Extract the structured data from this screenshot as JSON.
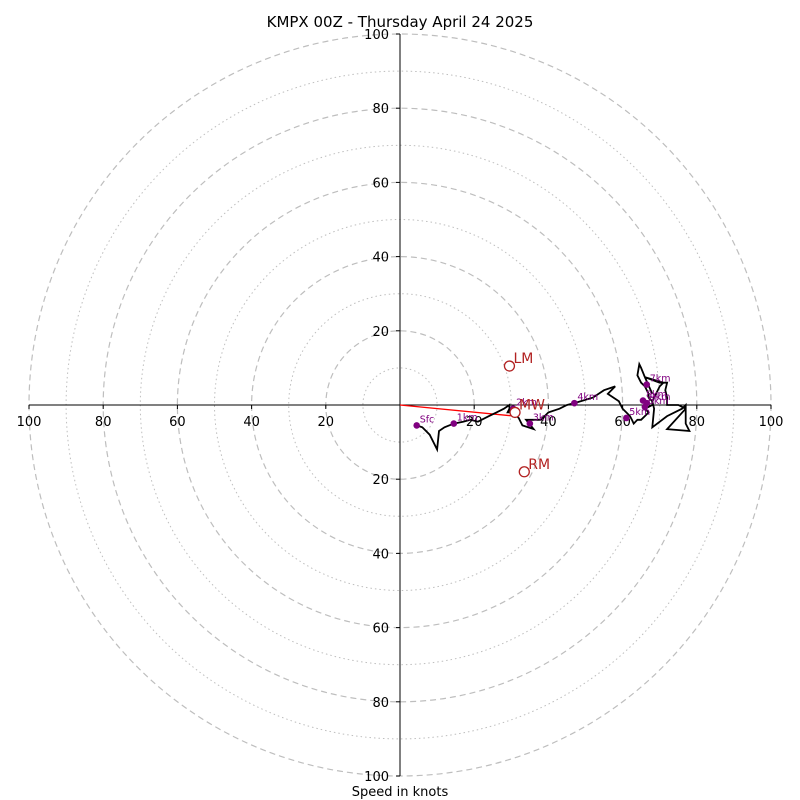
{
  "chart_data": {
    "type": "hodograph",
    "title": "KMPX 00Z - Thursday April 24 2025",
    "xlabel": "Speed in knots",
    "range": [
      -100,
      100
    ],
    "rings_major": [
      20,
      40,
      60,
      80,
      100
    ],
    "rings_minor": [
      10,
      30,
      50,
      70,
      90
    ],
    "tick_values": [
      20,
      40,
      60,
      80,
      100
    ],
    "trace": [
      [
        4.5,
        -5.5
      ],
      [
        6,
        -6
      ],
      [
        8,
        -8
      ],
      [
        10,
        -12
      ],
      [
        10.5,
        -7
      ],
      [
        12,
        -6
      ],
      [
        14.5,
        -5
      ],
      [
        17,
        -4.5
      ],
      [
        19,
        -4
      ],
      [
        21,
        -4.5
      ],
      [
        24,
        -3
      ],
      [
        26,
        -2
      ],
      [
        28,
        -1
      ],
      [
        29.5,
        0
      ],
      [
        29.5,
        -2
      ],
      [
        29,
        -2
      ],
      [
        29.5,
        -1
      ],
      [
        32,
        -3.5
      ],
      [
        33,
        -5.5
      ],
      [
        36,
        -6.5
      ],
      [
        34,
        -4
      ],
      [
        38,
        -4
      ],
      [
        40,
        -2
      ],
      [
        43,
        -1
      ],
      [
        45,
        0
      ],
      [
        47,
        0.5
      ],
      [
        52,
        2
      ],
      [
        55,
        4
      ],
      [
        58,
        5
      ],
      [
        56,
        3
      ],
      [
        59,
        1
      ],
      [
        59.5,
        0
      ],
      [
        60,
        -1
      ],
      [
        61,
        -2
      ],
      [
        62,
        -3
      ],
      [
        62.5,
        -4
      ],
      [
        63,
        -5
      ],
      [
        64,
        -4
      ],
      [
        65,
        -4
      ],
      [
        66,
        -3
      ],
      [
        67,
        -2
      ],
      [
        66,
        -1
      ],
      [
        67,
        -0.5
      ],
      [
        68,
        0
      ],
      [
        68,
        1
      ],
      [
        67,
        2
      ],
      [
        67,
        3
      ],
      [
        66,
        5
      ],
      [
        65,
        6
      ],
      [
        64,
        8
      ],
      [
        64.5,
        11
      ],
      [
        65,
        10
      ],
      [
        66,
        7.5
      ],
      [
        70,
        6
      ],
      [
        72,
        6
      ],
      [
        71.5,
        4
      ],
      [
        72,
        2
      ],
      [
        72,
        0
      ],
      [
        75,
        0
      ],
      [
        77,
        -1
      ],
      [
        77,
        -5
      ],
      [
        78,
        -7
      ],
      [
        72,
        -6.5
      ],
      [
        77,
        -1
      ],
      [
        77,
        0
      ],
      [
        76,
        -1
      ],
      [
        74,
        -2
      ],
      [
        72,
        -3
      ],
      [
        68,
        -6
      ],
      [
        68.5,
        -1
      ],
      [
        68,
        1
      ],
      [
        69,
        3
      ],
      [
        70,
        5
      ],
      [
        71,
        6
      ],
      [
        66,
        7.5
      ],
      [
        68,
        3
      ]
    ],
    "height_markers": [
      {
        "label": "Sfc",
        "x": 4.5,
        "y": -5.5
      },
      {
        "label": "1km",
        "x": 14.5,
        "y": -5
      },
      {
        "label": "2km",
        "x": 30.5,
        "y": -1
      },
      {
        "label": "3km",
        "x": 35,
        "y": -5
      },
      {
        "label": "4km",
        "x": 47,
        "y": 0.5
      },
      {
        "label": "5km",
        "x": 61,
        "y": -3.5
      },
      {
        "label": "6km",
        "x": 66,
        "y": -0.5
      },
      {
        "label": "7km",
        "x": 66.5,
        "y": 5.5
      },
      {
        "label": "8km",
        "x": 65.5,
        "y": 1.2
      },
      {
        "label": "9km",
        "x": 66.5,
        "y": 0.5
      }
    ],
    "storm_motions": [
      {
        "label": "LM",
        "x": 29.5,
        "y": 10.5
      },
      {
        "label": "MW",
        "x": 31,
        "y": -2
      },
      {
        "label": "RM",
        "x": 33.5,
        "y": -18
      }
    ],
    "shear_vector": {
      "from": [
        0,
        0
      ],
      "to": [
        31,
        -3
      ]
    },
    "colors": {
      "trace": "#000000",
      "height_marker": "#800080",
      "storm_motion": "#b22222",
      "shear_vector": "#ff0000",
      "ring": "#bebebe",
      "axis": "#000000"
    }
  }
}
